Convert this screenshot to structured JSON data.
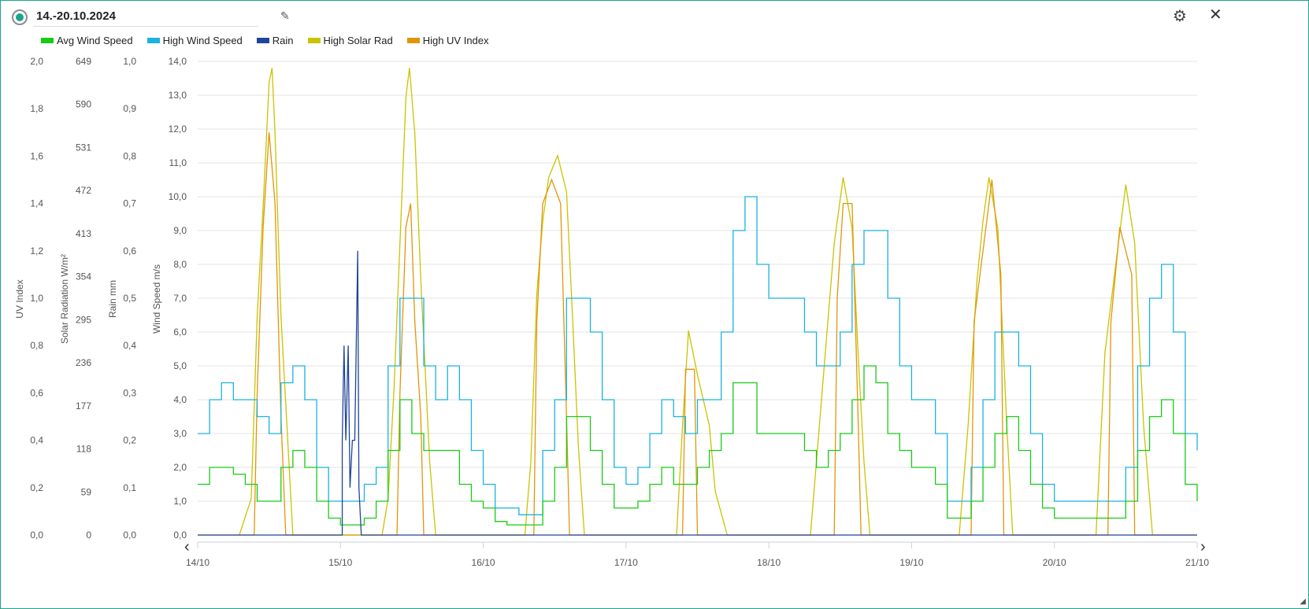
{
  "header": {
    "title": "14.-20.10.2024",
    "edit_icon": "pencil-icon",
    "settings_icon": "gear-icon",
    "close_icon": "close-icon"
  },
  "nav": {
    "prev_icon": "chevron-left-icon",
    "next_icon": "chevron-right-icon"
  },
  "colors": {
    "avg_wind": "#16cc16",
    "high_wind": "#1ab2e0",
    "rain": "#1f4599",
    "solar": "#c8c400",
    "uv": "#e0960a",
    "accent": "#1aa68a"
  },
  "chart_data": {
    "type": "line",
    "title": "14.-20.10.2024",
    "legend_position": "top-left",
    "grid": true,
    "x_unit": "hours since 14/10 00:00",
    "xlim": [
      0,
      168
    ],
    "x_ticks": [
      {
        "h": 0,
        "label": "14/10"
      },
      {
        "h": 24,
        "label": "15/10"
      },
      {
        "h": 48,
        "label": "16/10"
      },
      {
        "h": 72,
        "label": "17/10"
      },
      {
        "h": 96,
        "label": "18/10"
      },
      {
        "h": 120,
        "label": "19/10"
      },
      {
        "h": 144,
        "label": "20/10"
      },
      {
        "h": 168,
        "label": "21/10"
      }
    ],
    "axes": [
      {
        "id": "uv",
        "title": "UV Index",
        "ylim": [
          0,
          2
        ],
        "ticks": [
          "0,0",
          "0,2",
          "0,4",
          "0,6",
          "0,8",
          "1,0",
          "1,2",
          "1,4",
          "1,6",
          "1,8",
          "2,0"
        ]
      },
      {
        "id": "solar",
        "title": "Solar Radiation W/m²",
        "ylim": [
          0,
          649
        ],
        "ticks": [
          "0",
          "59",
          "118",
          "177",
          "236",
          "295",
          "354",
          "413",
          "472",
          "531",
          "590",
          "649"
        ]
      },
      {
        "id": "rain",
        "title": "Rain mm",
        "ylim": [
          0,
          1
        ],
        "ticks": [
          "0,0",
          "0,1",
          "0,2",
          "0,3",
          "0,4",
          "0,5",
          "0,6",
          "0,7",
          "0,8",
          "0,9",
          "1,0"
        ]
      },
      {
        "id": "wind",
        "title": "Wind Speed m/s",
        "ylim": [
          0,
          14
        ],
        "ticks": [
          "0,0",
          "1,0",
          "2,0",
          "3,0",
          "4,0",
          "5,0",
          "6,0",
          "7,0",
          "8,0",
          "9,0",
          "10,0",
          "11,0",
          "12,0",
          "13,0",
          "14,0"
        ]
      }
    ],
    "series": [
      {
        "name": "Avg Wind Speed",
        "axis": "wind",
        "color": "#16cc16",
        "step_hours": 2,
        "values": [
          1.5,
          2,
          2,
          1.8,
          1.5,
          1,
          1,
          2,
          2.5,
          2,
          1,
          0.5,
          0.3,
          0.3,
          0.5,
          1,
          2.5,
          4,
          3,
          2.5,
          2.5,
          2.5,
          1.5,
          1,
          0.8,
          0.4,
          0.3,
          0.3,
          0.3,
          1,
          2,
          3.5,
          3.5,
          2.5,
          1.5,
          0.8,
          0.8,
          1,
          1.5,
          2,
          1.5,
          1.5,
          2,
          2.5,
          3,
          4.5,
          4.5,
          3,
          3,
          3,
          3,
          2.5,
          2,
          2.5,
          3,
          4,
          5,
          4.5,
          3,
          2.5,
          2,
          2,
          1.5,
          0.5,
          0.5,
          1,
          2,
          3,
          3.5,
          2.5,
          1.5,
          0.8,
          0.5,
          0.5,
          0.5,
          0.5,
          0.5,
          0.5,
          1,
          2.5,
          3.5,
          4,
          3,
          1.5,
          1
        ]
      },
      {
        "name": "High Wind Speed",
        "axis": "wind",
        "color": "#1ab2e0",
        "step_hours": 2,
        "values": [
          3,
          4,
          4.5,
          4,
          4,
          3.5,
          3,
          4.5,
          5,
          4,
          2,
          1,
          1,
          1,
          1.5,
          2,
          5,
          7,
          7,
          5,
          4,
          5,
          4,
          2.5,
          1.5,
          0.8,
          0.8,
          0.6,
          0.6,
          2.5,
          4,
          7,
          7,
          6,
          4,
          2,
          1.5,
          2,
          3,
          4,
          3.5,
          3,
          4,
          4,
          6,
          9,
          10,
          8,
          7,
          7,
          7,
          6,
          5,
          5,
          6,
          8,
          9,
          9,
          7,
          5,
          4,
          4,
          3,
          1,
          1,
          2,
          4,
          6,
          6,
          5,
          3,
          1.5,
          1,
          1,
          1,
          1,
          1,
          1,
          2,
          5,
          7,
          8,
          6,
          3,
          2.5
        ]
      },
      {
        "name": "Rain",
        "axis": "rain",
        "color": "#1f4599",
        "points": [
          [
            0,
            0
          ],
          [
            24.3,
            0
          ],
          [
            24.3,
            0.2
          ],
          [
            24.6,
            0.4
          ],
          [
            24.9,
            0.2
          ],
          [
            25.3,
            0.4
          ],
          [
            25.6,
            0.1
          ],
          [
            26,
            0.2
          ],
          [
            26.4,
            0.2
          ],
          [
            26.9,
            0.6
          ],
          [
            27.1,
            0.1
          ],
          [
            27.5,
            0
          ],
          [
            168,
            0
          ]
        ]
      },
      {
        "name": "High Solar Rad",
        "axis": "solar",
        "color": "#c8c400",
        "points": [
          [
            7,
            0
          ],
          [
            9,
            50
          ],
          [
            10,
            300
          ],
          [
            11,
            450
          ],
          [
            12,
            620
          ],
          [
            12.5,
            640
          ],
          [
            13,
            550
          ],
          [
            14,
            300
          ],
          [
            15,
            150
          ],
          [
            16,
            0
          ],
          [
            31,
            0
          ],
          [
            32,
            50
          ],
          [
            33,
            200
          ],
          [
            34,
            400
          ],
          [
            35,
            600
          ],
          [
            35.6,
            640
          ],
          [
            36.5,
            550
          ],
          [
            37.5,
            350
          ],
          [
            39,
            100
          ],
          [
            40,
            0
          ],
          [
            55,
            0
          ],
          [
            56,
            100
          ],
          [
            57,
            330
          ],
          [
            58,
            430
          ],
          [
            59,
            490
          ],
          [
            60.5,
            520
          ],
          [
            62,
            470
          ],
          [
            63,
            300
          ],
          [
            64,
            120
          ],
          [
            65,
            0
          ],
          [
            80.5,
            0
          ],
          [
            81.5,
            150
          ],
          [
            82.5,
            280
          ],
          [
            84,
            220
          ],
          [
            86,
            150
          ],
          [
            87,
            60
          ],
          [
            89,
            0
          ],
          [
            103,
            0
          ],
          [
            104.5,
            150
          ],
          [
            106,
            300
          ],
          [
            107,
            400
          ],
          [
            108.5,
            490
          ],
          [
            110,
            420
          ],
          [
            111,
            250
          ],
          [
            112,
            100
          ],
          [
            113,
            0
          ],
          [
            128,
            0
          ],
          [
            129.5,
            150
          ],
          [
            131,
            350
          ],
          [
            132,
            430
          ],
          [
            133,
            490
          ],
          [
            134.5,
            420
          ],
          [
            136,
            150
          ],
          [
            137,
            0
          ],
          [
            151,
            0
          ],
          [
            152.5,
            250
          ],
          [
            154,
            350
          ],
          [
            156,
            480
          ],
          [
            157.5,
            400
          ],
          [
            159,
            150
          ],
          [
            160.5,
            0
          ]
        ]
      },
      {
        "name": "High UV Index",
        "axis": "uv",
        "color": "#e0960a",
        "points": [
          [
            0,
            0
          ],
          [
            9.5,
            0
          ],
          [
            10,
            0.6
          ],
          [
            11,
            1.3
          ],
          [
            12,
            1.7
          ],
          [
            13,
            1.4
          ],
          [
            14,
            0.5
          ],
          [
            14.8,
            0
          ],
          [
            33.5,
            0
          ],
          [
            34,
            0.6
          ],
          [
            35,
            1.3
          ],
          [
            35.8,
            1.4
          ],
          [
            36.5,
            0.9
          ],
          [
            37.5,
            0.5
          ],
          [
            38,
            0
          ],
          [
            56.5,
            0
          ],
          [
            57,
            0.9
          ],
          [
            58,
            1.4
          ],
          [
            59.5,
            1.5
          ],
          [
            61,
            1.4
          ],
          [
            62,
            0.5
          ],
          [
            62.5,
            0
          ],
          [
            81.5,
            0
          ],
          [
            82,
            0.7
          ],
          [
            83.5,
            0.7
          ],
          [
            84,
            0
          ],
          [
            107,
            0
          ],
          [
            107.5,
            1.0
          ],
          [
            108.5,
            1.4
          ],
          [
            110,
            1.4
          ],
          [
            111,
            0.5
          ],
          [
            111.5,
            0
          ],
          [
            130,
            0
          ],
          [
            130.5,
            0.9
          ],
          [
            132,
            1.2
          ],
          [
            133.5,
            1.5
          ],
          [
            135,
            1.1
          ],
          [
            135.5,
            0
          ],
          [
            153,
            0
          ],
          [
            153.5,
            0.9
          ],
          [
            155,
            1.3
          ],
          [
            157,
            1.1
          ],
          [
            157.5,
            0
          ],
          [
            168,
            0
          ]
        ]
      }
    ]
  }
}
